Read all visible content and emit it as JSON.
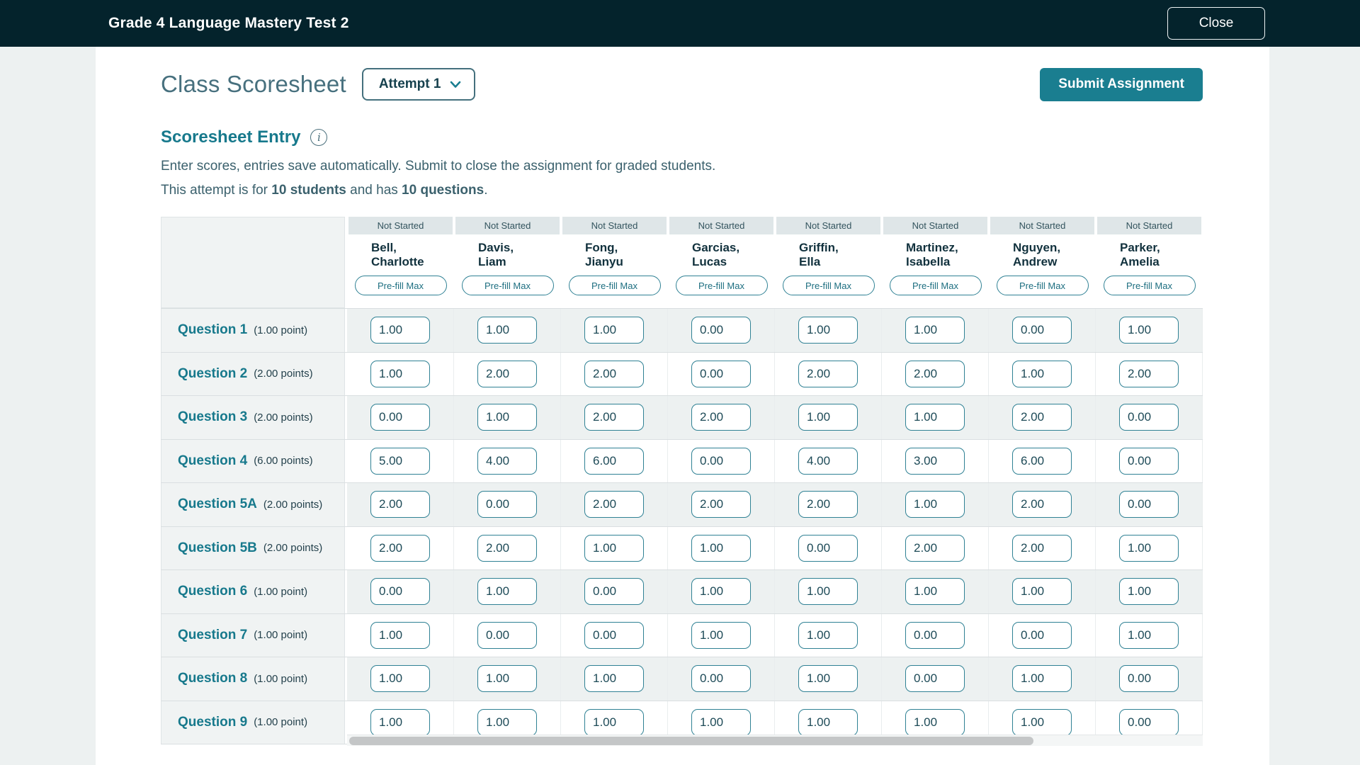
{
  "topbar": {
    "title": "Grade 4 Language Mastery Test 2",
    "close_label": "Close"
  },
  "header": {
    "title": "Class Scoresheet",
    "attempt_label": "Attempt 1",
    "submit_label": "Submit Assignment"
  },
  "entry": {
    "title": "Scoresheet Entry",
    "info_icon": "info-circle-icon",
    "description": "Enter scores, entries save automatically. Submit to close the assignment for graded students.",
    "summary_prefix": "This attempt is for ",
    "summary_students": "10 students",
    "summary_middle": " and has ",
    "summary_questions": "10 questions",
    "summary_suffix": "."
  },
  "table": {
    "prefill_label": "Pre-fill Max",
    "students": [
      {
        "status": "Not Started",
        "name_lines": [
          "Bell,",
          "Charlotte"
        ]
      },
      {
        "status": "Not Started",
        "name_lines": [
          "Davis,",
          "Liam"
        ]
      },
      {
        "status": "Not Started",
        "name_lines": [
          "Fong,",
          "Jianyu"
        ]
      },
      {
        "status": "Not Started",
        "name_lines": [
          "Garcias,",
          "Lucas"
        ]
      },
      {
        "status": "Not Started",
        "name_lines": [
          "Griffin,",
          "Ella"
        ]
      },
      {
        "status": "Not Started",
        "name_lines": [
          "Martinez,",
          "Isabella"
        ]
      },
      {
        "status": "Not Started",
        "name_lines": [
          "Nguyen,",
          "Andrew"
        ]
      },
      {
        "status": "Not Started",
        "name_lines": [
          "Parker,",
          "Amelia"
        ]
      }
    ],
    "questions": [
      {
        "label": "Question 1",
        "points": "(1.00 point)",
        "scores": [
          "1.00",
          "1.00",
          "1.00",
          "0.00",
          "1.00",
          "1.00",
          "0.00",
          "1.00"
        ]
      },
      {
        "label": "Question 2",
        "points": "(2.00 points)",
        "scores": [
          "1.00",
          "2.00",
          "2.00",
          "0.00",
          "2.00",
          "2.00",
          "1.00",
          "2.00"
        ]
      },
      {
        "label": "Question 3",
        "points": "(2.00 points)",
        "scores": [
          "0.00",
          "1.00",
          "2.00",
          "2.00",
          "1.00",
          "1.00",
          "2.00",
          "0.00"
        ]
      },
      {
        "label": "Question 4",
        "points": "(6.00 points)",
        "scores": [
          "5.00",
          "4.00",
          "6.00",
          "0.00",
          "4.00",
          "3.00",
          "6.00",
          "0.00"
        ]
      },
      {
        "label": "Question 5A",
        "points": "(2.00 points)",
        "scores": [
          "2.00",
          "0.00",
          "2.00",
          "2.00",
          "2.00",
          "1.00",
          "2.00",
          "0.00"
        ]
      },
      {
        "label": "Question 5B",
        "points": "(2.00 points)",
        "scores": [
          "2.00",
          "2.00",
          "1.00",
          "1.00",
          "0.00",
          "2.00",
          "2.00",
          "1.00"
        ]
      },
      {
        "label": "Question 6",
        "points": "(1.00 point)",
        "scores": [
          "0.00",
          "1.00",
          "0.00",
          "1.00",
          "1.00",
          "1.00",
          "1.00",
          "1.00"
        ]
      },
      {
        "label": "Question 7",
        "points": "(1.00 point)",
        "scores": [
          "1.00",
          "0.00",
          "0.00",
          "1.00",
          "1.00",
          "0.00",
          "0.00",
          "1.00"
        ]
      },
      {
        "label": "Question 8",
        "points": "(1.00 point)",
        "scores": [
          "1.00",
          "1.00",
          "1.00",
          "0.00",
          "1.00",
          "0.00",
          "1.00",
          "0.00"
        ]
      },
      {
        "label": "Question 9",
        "points": "(1.00 point)",
        "scores": [
          "1.00",
          "1.00",
          "1.00",
          "1.00",
          "1.00",
          "1.00",
          "1.00",
          "0.00"
        ]
      }
    ]
  },
  "colors": {
    "topbar_bg": "#04232c",
    "page_bg": "#edf1f1",
    "accent_teal": "#1a7e90",
    "teal_text": "#17798c",
    "body_text": "#3b616d",
    "status_band_bg": "#dfe6e8"
  }
}
